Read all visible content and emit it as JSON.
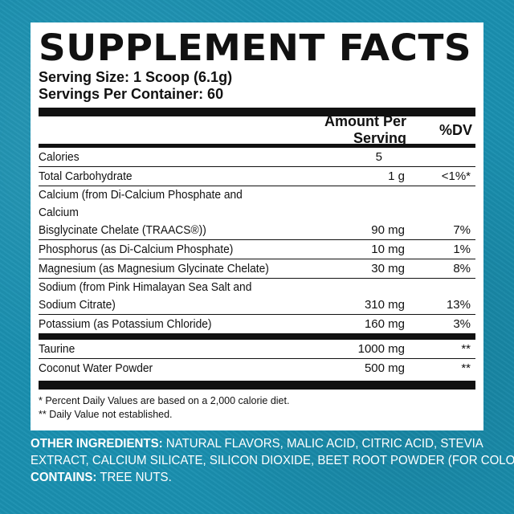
{
  "title": "SUPPLEMENT FACTS",
  "serving_size": "Serving Size: 1 Scoop (6.1g)",
  "servings_per_container": "Servings Per Container: 60",
  "header": {
    "amount_label": "Amount Per Serving",
    "dv_label": "%DV"
  },
  "rows": [
    {
      "name": "Calories",
      "amount": "5",
      "dv": ""
    },
    {
      "name": "Total Carbohydrate",
      "amount": "1 g",
      "dv": "<1%*"
    },
    {
      "name": "Calcium (from Di-Calcium Phosphate and Calcium\nBisglycinate Chelate (TRAACS®))",
      "amount": "90 mg",
      "dv": "7%"
    },
    {
      "name": "Phosphorus (as Di-Calcium Phosphate)",
      "amount": "10 mg",
      "dv": "1%"
    },
    {
      "name": "Magnesium (as Magnesium Glycinate Chelate)",
      "amount": "30 mg",
      "dv": "8%"
    },
    {
      "name": "Sodium (from Pink Himalayan Sea Salt and\nSodium Citrate)",
      "amount": "310 mg",
      "dv": "13%"
    },
    {
      "name": "Potassium (as Potassium Chloride)",
      "amount": "160 mg",
      "dv": "3%"
    }
  ],
  "other_rows": [
    {
      "name": "Taurine",
      "amount": "1000 mg",
      "dv": "**"
    },
    {
      "name": "Coconut Water Powder",
      "amount": "500 mg",
      "dv": "**"
    }
  ],
  "footnotes": [
    "* Percent Daily Values are based on a 2,000 calorie diet.",
    "** Daily Value not established."
  ],
  "other_ingredients": {
    "label": "OTHER INGREDIENTS:",
    "line1": "NATURAL FLAVORS, MALIC ACID, CITRIC ACID, STEVIA",
    "line2": "EXTRACT, CALCIUM SILICATE, SILICON DIOXIDE, BEET ROOT POWDER (FOR COLOR).",
    "contains_label": "CONTAINS:",
    "contains_value": "TREE NUTS."
  },
  "colors": {
    "background": "#1a8fb0",
    "panel": "#ffffff",
    "text": "#111111"
  }
}
